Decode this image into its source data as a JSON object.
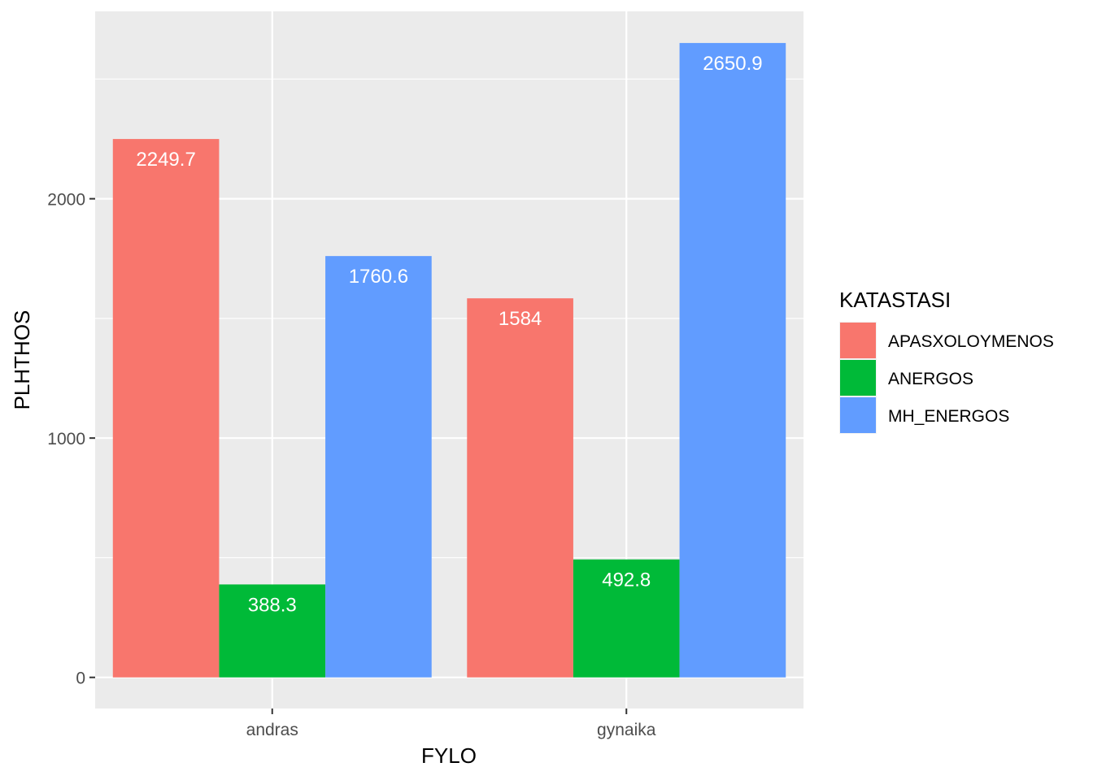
{
  "chart_data": {
    "type": "bar",
    "title": "",
    "xlabel": "FYLO",
    "ylabel": "PLHTHOS",
    "categories": [
      "andras",
      "gynaika"
    ],
    "series": [
      {
        "name": "APASXOLOYMENOS",
        "color": "#F8766D",
        "values": [
          2249.7,
          1584
        ]
      },
      {
        "name": "ANERGOS",
        "color": "#00BA38",
        "values": [
          388.3,
          492.8
        ]
      },
      {
        "name": "MH_ENERGOS",
        "color": "#619CFF",
        "values": [
          1760.6,
          2650.9
        ]
      }
    ],
    "data_labels": [
      [
        "2249.7",
        "1584"
      ],
      [
        "388.3",
        "492.8"
      ],
      [
        "1760.6",
        "2650.9"
      ]
    ],
    "ylim": [
      -130,
      2783
    ],
    "yticks": [
      0,
      1000,
      2000
    ],
    "ytick_labels": [
      "0",
      "1000",
      "2000"
    ],
    "legend": {
      "title": "KATASTASI",
      "position": "right"
    },
    "grid": true,
    "panel_background": "#EBEBEB",
    "grid_color": "#FFFFFF"
  }
}
